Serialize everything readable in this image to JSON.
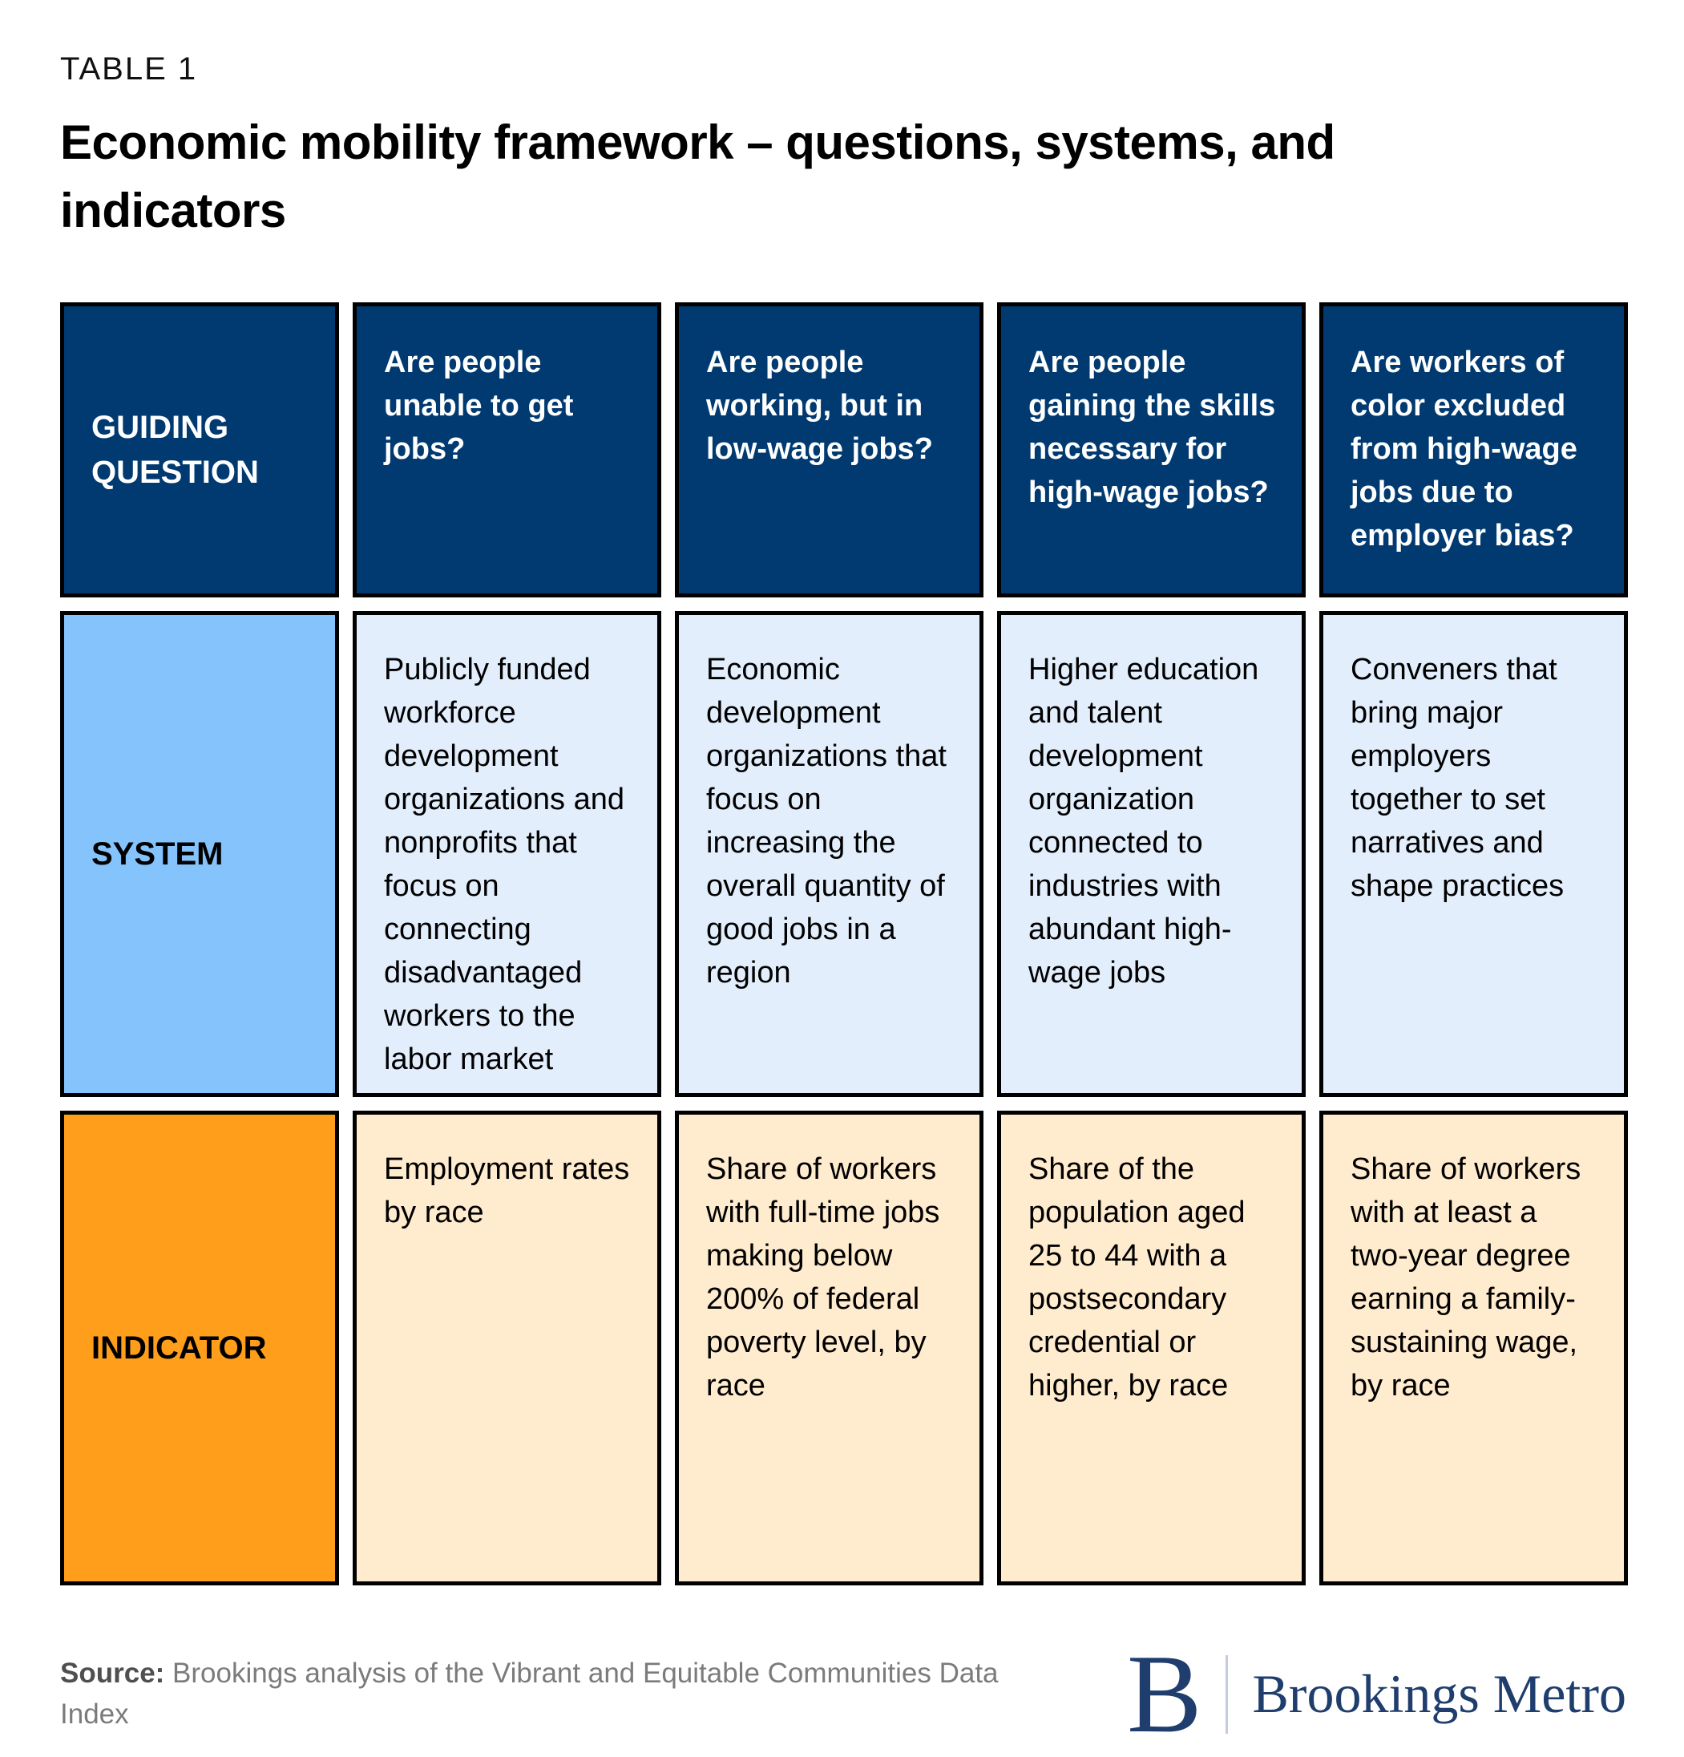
{
  "table_label": "TABLE 1",
  "title": "Economic mobility framework – questions, systems, and indicators",
  "table": {
    "corner_label": "GUIDING QUESTION",
    "row_labels": {
      "system": "SYSTEM",
      "indicator": "INDICATOR"
    },
    "columns": [
      {
        "question": "Are people unable to get jobs?",
        "system": "Publicly funded workforce development organizations and nonprofits that focus on connecting disadvantaged workers to the labor market",
        "indicator": "Employment rates by race"
      },
      {
        "question": "Are people working, but in low-wage jobs?",
        "system": "Economic development organizations that focus on increasing the overall quantity of good jobs in a region",
        "indicator": "Share of workers with full-time jobs making below 200% of federal poverty level, by race"
      },
      {
        "question": "Are people gaining the skills necessary for high-wage jobs?",
        "system": "Higher education and talent development organization connected to industries with abundant high-wage jobs",
        "indicator": "Share of the population aged 25 to 44 with a postsecondary credential or higher, by race"
      },
      {
        "question": "Are workers of color excluded from high-wage jobs due to employer bias?",
        "system": "Conveners that bring major employers together to set narratives and shape practices",
        "indicator": "Share of workers with at least a two-year degree earning a family-sustaining wage, by race"
      }
    ]
  },
  "footer": {
    "source_label": "Source:",
    "source_text": " Brookings analysis of the Vibrant and Equitable Communities Data Index",
    "logo_letter": "B",
    "logo_text": "Brookings Metro"
  },
  "colors": {
    "header_navy": "#003A70",
    "system_label_blue": "#85C3FD",
    "system_cell_blue": "#E3EEFC",
    "indicator_label_orange": "#FF9E1B",
    "indicator_cell_peach": "#FFEBCE",
    "border_black": "#000000",
    "logo_navy": "#1F3E6D"
  }
}
